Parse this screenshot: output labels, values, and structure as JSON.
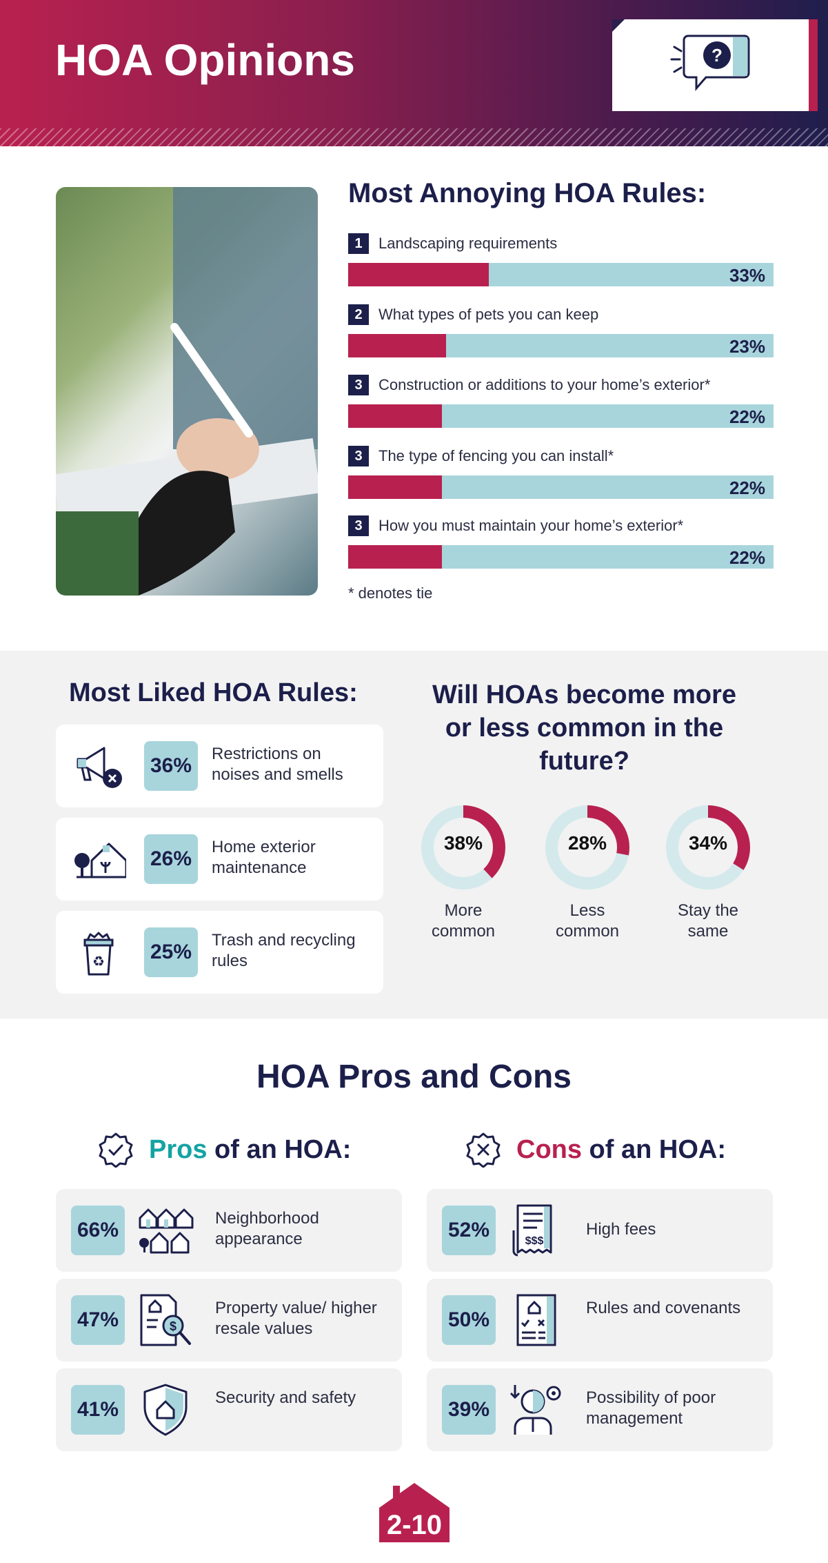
{
  "header": {
    "title": "HOA Opinions",
    "icon": "question-chat-icon"
  },
  "annoying": {
    "title": "Most Annoying HOA Rules:",
    "note": "* denotes tie"
  },
  "liked": {
    "title": "Most Liked HOA Rules:",
    "items": [
      {
        "pct": "36%",
        "text": "Restrictions on noises and smells",
        "icon": "megaphone-mute-icon"
      },
      {
        "pct": "26%",
        "text": "Home exterior maintenance",
        "icon": "house-maintenance-icon"
      },
      {
        "pct": "25%",
        "text": "Trash and recycling rules",
        "icon": "recycling-bin-icon"
      }
    ]
  },
  "future": {
    "title": "Will HOAs become more or less common in the future?"
  },
  "pros_cons": {
    "title": "HOA Pros and Cons",
    "pros": {
      "word": "Pros",
      "rest": " of an HOA:",
      "items": [
        {
          "pct": "66%",
          "text": "Neighborhood appearance",
          "icon": "neighborhood-icon"
        },
        {
          "pct": "47%",
          "text": "Property value/ higher resale values",
          "icon": "property-value-icon"
        },
        {
          "pct": "41%",
          "text": "Security and safety",
          "icon": "shield-home-icon"
        }
      ]
    },
    "cons": {
      "word": "Cons",
      "rest": " of an HOA:",
      "items": [
        {
          "pct": "52%",
          "text": "High fees",
          "icon": "fees-receipt-icon"
        },
        {
          "pct": "50%",
          "text": "Rules and covenants",
          "icon": "rules-document-icon"
        },
        {
          "pct": "39%",
          "text": "Possibility of poor management",
          "icon": "manager-gear-icon"
        }
      ]
    }
  },
  "logo": {
    "text": "2-10"
  },
  "colors": {
    "accent": "#b8214f",
    "bar_bg": "#a8d5dc",
    "navy": "#1c1f4a",
    "teal": "#14a3a3"
  },
  "chart_data": [
    {
      "type": "bar",
      "title": "Most Annoying HOA Rules:",
      "categories": [
        "Landscaping requirements",
        "What types of pets you can keep",
        "Construction or additions to your home’s exterior*",
        "The type of fencing you can install*",
        "How you must maintain your home’s exterior*"
      ],
      "ranks": [
        "1",
        "2",
        "3",
        "3",
        "3"
      ],
      "values": [
        33,
        23,
        22,
        22,
        22
      ],
      "value_labels": [
        "33%",
        "23%",
        "22%",
        "22%",
        "22%"
      ],
      "ylim": [
        0,
        100
      ]
    },
    {
      "type": "pie",
      "title": "Will HOAs become more or less common in the future?",
      "categories": [
        "More common",
        "Less common",
        "Stay the same"
      ],
      "values": [
        38,
        28,
        34
      ],
      "value_labels": [
        "38%",
        "28%",
        "34%"
      ]
    }
  ]
}
